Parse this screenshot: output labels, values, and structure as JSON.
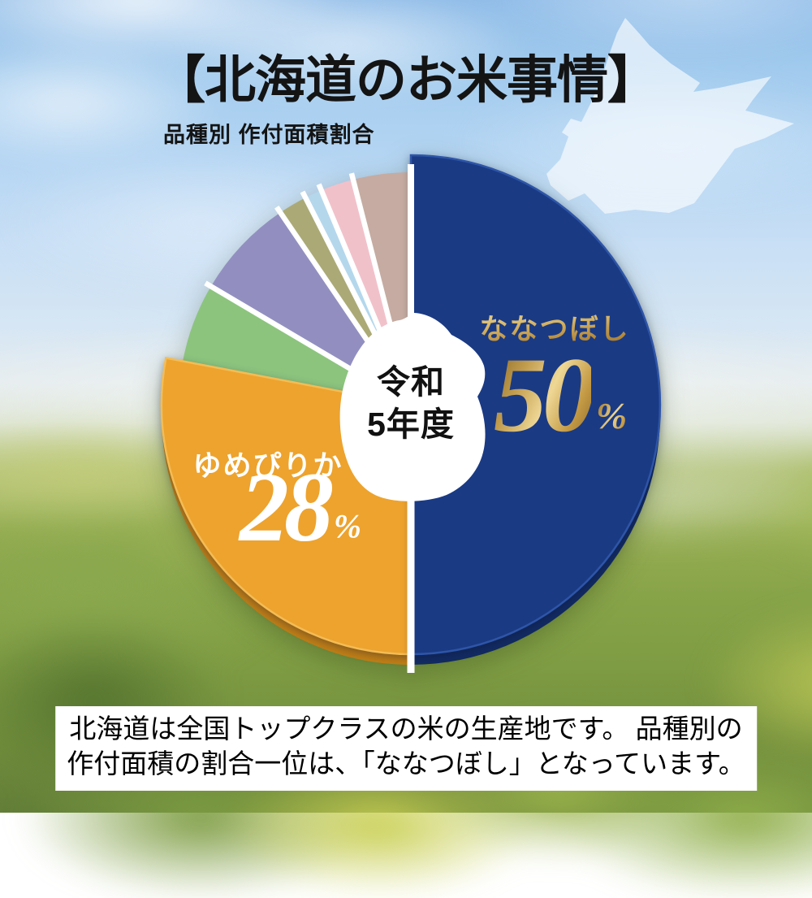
{
  "header": {
    "title": "【北海道のお米事情】",
    "subtitle": "品種別 作付面積割合"
  },
  "chart_data": {
    "type": "pie",
    "title": "品種別 作付面積割合",
    "year_label": "令和5年度",
    "center_label": {
      "line1": "令和",
      "line2": "5年度"
    },
    "legend_position": "none",
    "slices": [
      {
        "name": "ななつぼし",
        "value": 50,
        "unit": "%",
        "color": "#1a3a84",
        "shadow_color": "#122b63",
        "rim_color": "#2e55a8",
        "label_color": "#c8a24d",
        "gap_before": true
      },
      {
        "name": "ゆめぴりか",
        "value": 28,
        "unit": "%",
        "color": "#eda32d",
        "shadow_color": "#c07e16",
        "rim_color": "#f4bc55",
        "label_color": "#ffffff",
        "gap_before": true
      },
      {
        "name": "",
        "value": 5.5,
        "color": "#8cc47e",
        "gap_before": false
      },
      {
        "name": "",
        "value": 7,
        "color": "#928fc0",
        "gap_before": true
      },
      {
        "name": "",
        "value": 2,
        "color": "#abaa76",
        "gap_before": true
      },
      {
        "name": "",
        "value": 1.2,
        "color": "#b4d7ec",
        "gap_before": true
      },
      {
        "name": "",
        "value": 2.3,
        "color": "#f1c1ca",
        "gap_before": true
      },
      {
        "name": "",
        "value": 4,
        "color": "#c5aba1",
        "gap_before": true
      }
    ]
  },
  "footer": {
    "line1": "北海道は全国トップクラスの米の生産地です。 品種別の",
    "line2": "作付面積の割合一位は、「ななつぼし」となっています。"
  }
}
